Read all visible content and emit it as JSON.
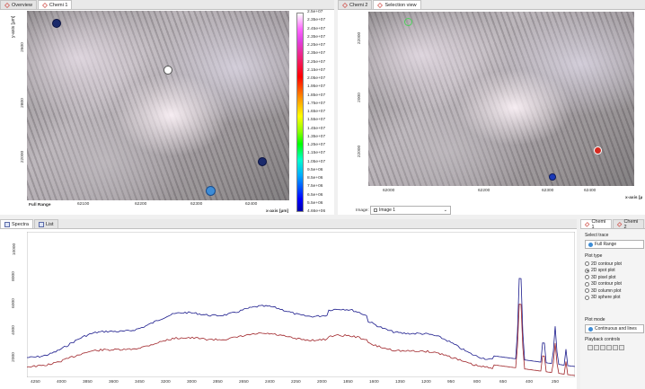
{
  "top_left": {
    "tabs": [
      "Overview",
      "Chemi 1"
    ],
    "y_axis_label": "y-axis [µm]",
    "y_ticks": [
      "2600",
      "2800",
      "22000"
    ],
    "x_ticks": [
      "62100",
      "62200",
      "62300",
      "62400"
    ],
    "x_axis_label": "x-axis [µm]",
    "full_range_label": "Full Range",
    "colorbar_ticks": [
      "2.5e+07",
      "2.35e+07",
      "2.45e+07",
      "2.35e+07",
      "2.25e+07",
      "2.35e+07",
      "2.25e+07",
      "2.15e+07",
      "2.05e+07",
      "1.95e+07",
      "1.85e+07",
      "1.75e+07",
      "1.65e+07",
      "1.55e+07",
      "1.45e+07",
      "1.35e+07",
      "1.25e+07",
      "1.15e+07",
      "1.05e+07",
      "9.5e+06",
      "8.5e+06",
      "7.5e+06",
      "6.5e+06",
      "5.5e+06",
      "4.66e+06"
    ]
  },
  "top_right": {
    "tabs": [
      "Chemi 2",
      "Selection view"
    ],
    "y_ticks": [
      "22000",
      "2000",
      "22000"
    ],
    "x_ticks": [
      "62000",
      "62200",
      "62300",
      "62400"
    ],
    "x_axis_label": "x-axis [µ",
    "image_label": "Image:",
    "image_select": "Image 1"
  },
  "spectra": {
    "tabs": [
      "Spectra",
      "List"
    ],
    "y_ticks": [
      "10000",
      "8000",
      "6000",
      "4000",
      "2000"
    ],
    "x_ticks": [
      "4250",
      "4000",
      "3850",
      "3600",
      "3450",
      "3200",
      "3000",
      "2850",
      "2650",
      "2400",
      "2250",
      "2000",
      "1850",
      "1600",
      "1350",
      "1200",
      "950",
      "800",
      "650",
      "400",
      "250"
    ]
  },
  "side_panel": {
    "tabs": [
      "Chemi 1",
      "Chemi 2"
    ],
    "select_trace_label": "Select trace",
    "trace_value": "Full Range",
    "plot_type_label": "Plot type",
    "plot_types": [
      "2D contour plot",
      "2D spot plot",
      "3D pixel plot",
      "3D contour plot",
      "3D column plot",
      "3D sphere plot"
    ],
    "selected_plot_type": "2D spot plot",
    "plot_mode_label": "Plot mode",
    "plot_mode_value": "Continuous and lines",
    "playback_label": "Playback controls"
  },
  "colors": {
    "series_blue": "#1a1a8c",
    "series_red": "#a0252a"
  }
}
